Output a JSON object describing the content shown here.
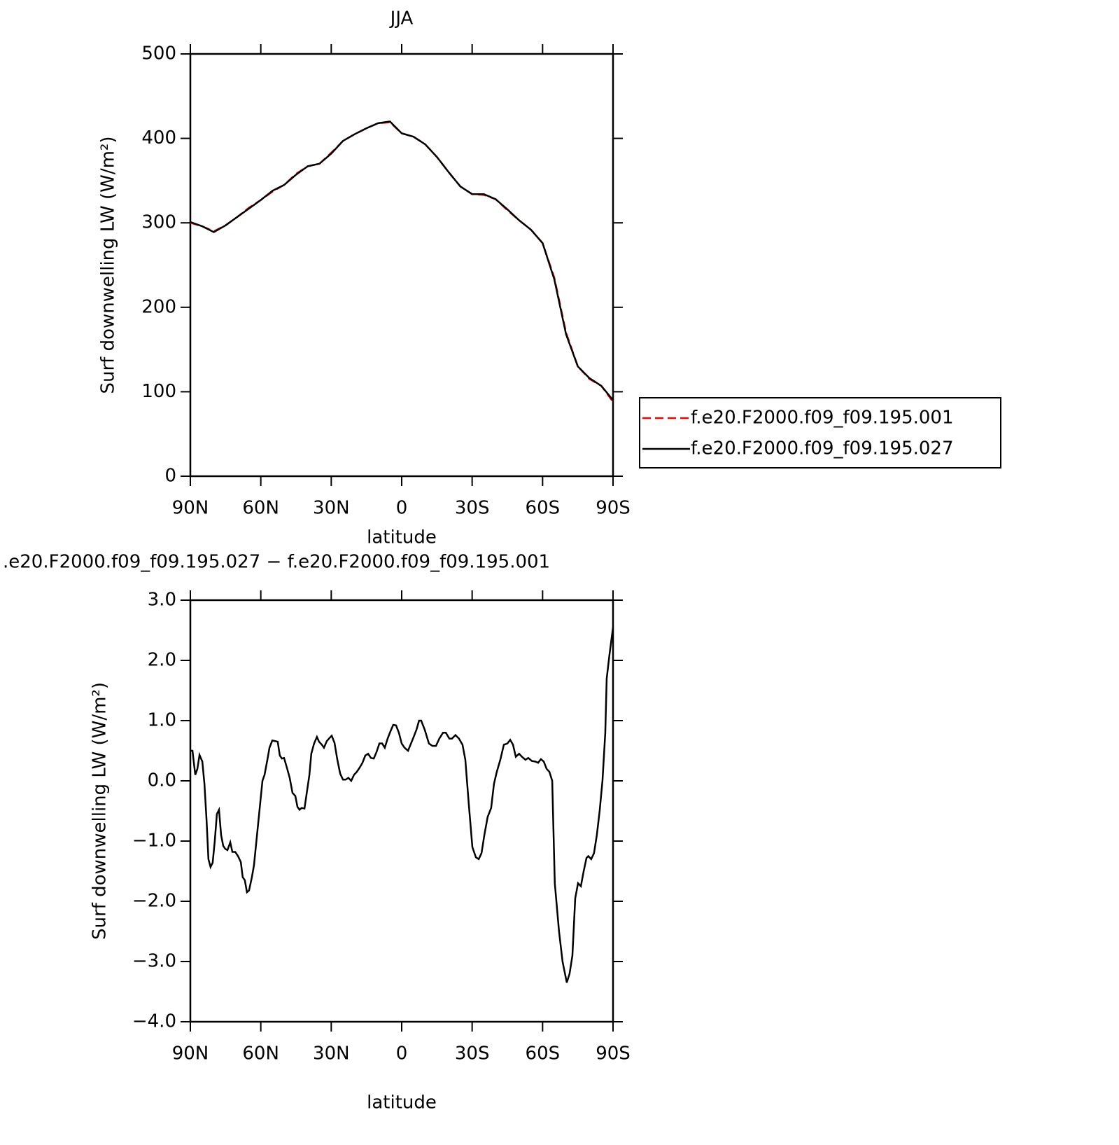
{
  "chart_data": [
    {
      "type": "line",
      "title": "JJA",
      "ylabel": "Surf downwelling LW (W/m²)",
      "xlabel": "latitude",
      "x": [
        90,
        85,
        80,
        75,
        70,
        65,
        60,
        55,
        50,
        45,
        40,
        35,
        30,
        25,
        20,
        15,
        10,
        5,
        0,
        -5,
        -10,
        -15,
        -20,
        -25,
        -30,
        -35,
        -40,
        -45,
        -50,
        -55,
        -60,
        -65,
        -70,
        -75,
        -80,
        -85,
        -90
      ],
      "series": [
        {
          "name": "f.e20.F2000.f09_f09.195.001",
          "color": "#ff0000",
          "line_style": "dashed",
          "values": [
            300,
            296,
            290,
            297,
            307,
            318,
            327,
            337,
            345,
            358,
            367,
            370,
            383,
            397,
            405,
            412,
            418,
            419,
            406,
            402,
            393,
            378,
            360,
            343,
            334,
            333,
            328,
            315,
            303,
            292,
            276,
            235,
            170,
            130,
            115,
            107,
            88
          ]
        },
        {
          "name": "f.e20.F2000.f09_f09.195.027",
          "color": "#000000",
          "line_style": "solid",
          "values": [
            301,
            296,
            289,
            297,
            307,
            317,
            327,
            338,
            345,
            357,
            367,
            370,
            382,
            397,
            405,
            412,
            418,
            420,
            406,
            402,
            393,
            378,
            360,
            343,
            334,
            334,
            328,
            316,
            303,
            292,
            276,
            233,
            168,
            130,
            116,
            107,
            90
          ]
        }
      ],
      "xlim": [
        90,
        -90
      ],
      "xticks": [
        {
          "value": 90,
          "label": "90N"
        },
        {
          "value": 60,
          "label": "60N"
        },
        {
          "value": 30,
          "label": "30N"
        },
        0,
        {
          "value": -30,
          "label": "30S"
        },
        {
          "value": -60,
          "label": "60S"
        },
        {
          "value": -90,
          "label": "90S"
        }
      ],
      "ylim": [
        0,
        500
      ],
      "yticks": [
        0,
        100,
        200,
        300,
        400,
        500
      ],
      "grid": false,
      "legend": "outside right"
    },
    {
      "type": "line",
      "title": ".e20.F2000.f09_f09.195.027 − f.e20.F2000.f09_f09.195.001",
      "ylabel": "Surf downwelling LW (W/m²)",
      "xlabel": "latitude",
      "x": [
        90,
        89.1,
        87.9,
        87,
        86.1,
        84.9,
        84,
        83.1,
        82.3,
        81.4,
        80.5,
        79.6,
        78.7,
        77.8,
        76.9,
        76,
        75.1,
        74.2,
        73,
        72.1,
        70.9,
        69.7,
        68.5,
        67.7,
        66.8,
        65.9,
        65,
        63.8,
        62.9,
        62,
        61.1,
        60.2,
        59.3,
        58.4,
        57.2,
        56.3,
        55.1,
        53.9,
        52.8,
        51.9,
        51,
        50.1,
        48.9,
        47.7,
        46.5,
        45.3,
        44.4,
        43.5,
        42.6,
        41.4,
        40.5,
        39.3,
        38.5,
        37.3,
        36.1,
        35.2,
        34,
        33.1,
        31.9,
        31,
        29.8,
        28.6,
        27.4,
        26.2,
        25,
        23.9,
        22.7,
        21.5,
        20.3,
        19.1,
        17.9,
        16.7,
        15.5,
        14.3,
        13.1,
        11.9,
        10.7,
        9.5,
        8.3,
        7.2,
        6,
        4.8,
        3.6,
        2.4,
        1.2,
        0,
        -1.2,
        -2.7,
        -4.8,
        -6.3,
        -7.4,
        -8.3,
        -9.8,
        -11.6,
        -13.1,
        -14.6,
        -16,
        -17.6,
        -18.8,
        -20.3,
        -21.4,
        -22.9,
        -24.4,
        -25.9,
        -27.1,
        -28.6,
        -30.1,
        -31.6,
        -32.8,
        -34,
        -35.2,
        -36.6,
        -38.1,
        -39.3,
        -40.5,
        -42,
        -43.5,
        -45,
        -46.2,
        -47.4,
        -48.6,
        -50,
        -51.2,
        -52.7,
        -53.9,
        -55.4,
        -56.9,
        -58.1,
        -59.3,
        -60.5,
        -61.7,
        -62.9,
        -64.1,
        -65.2,
        -67,
        -68.5,
        -70.3,
        -71.5,
        -72.7,
        -73.9,
        -75.1,
        -76.3,
        -77.5,
        -78.7,
        -79.5,
        -80.7,
        -81.9,
        -83.1,
        -84.3,
        -85.5,
        -86.7,
        -87.3,
        -88.5,
        -90
      ],
      "values": [
        0.5,
        0.5,
        0.1,
        0.2,
        0.43,
        0.32,
        -0.05,
        -0.65,
        -1.3,
        -1.43,
        -1.36,
        -1.0,
        -0.55,
        -0.48,
        -0.9,
        -1.08,
        -1.13,
        -1.15,
        -1.02,
        -1.18,
        -1.18,
        -1.25,
        -1.35,
        -1.6,
        -1.65,
        -1.85,
        -1.82,
        -1.6,
        -1.4,
        -1.05,
        -0.7,
        -0.35,
        0.0,
        0.1,
        0.35,
        0.55,
        0.67,
        0.66,
        0.65,
        0.42,
        0.37,
        0.38,
        0.22,
        0.05,
        -0.2,
        -0.25,
        -0.43,
        -0.48,
        -0.45,
        -0.46,
        -0.22,
        0.1,
        0.45,
        0.62,
        0.73,
        0.65,
        0.6,
        0.55,
        0.66,
        0.7,
        0.75,
        0.63,
        0.35,
        0.12,
        0.02,
        0.02,
        0.05,
        0.0,
        0.1,
        0.15,
        0.22,
        0.3,
        0.42,
        0.45,
        0.38,
        0.37,
        0.48,
        0.62,
        0.62,
        0.55,
        0.7,
        0.82,
        0.93,
        0.92,
        0.8,
        0.62,
        0.55,
        0.5,
        0.7,
        0.85,
        1.0,
        1.0,
        0.85,
        0.62,
        0.58,
        0.58,
        0.7,
        0.8,
        0.8,
        0.7,
        0.7,
        0.76,
        0.7,
        0.6,
        0.35,
        -0.4,
        -1.1,
        -1.27,
        -1.3,
        -1.2,
        -0.9,
        -0.6,
        -0.45,
        -0.05,
        0.15,
        0.35,
        0.6,
        0.62,
        0.68,
        0.6,
        0.4,
        0.45,
        0.4,
        0.35,
        0.38,
        0.33,
        0.32,
        0.3,
        0.36,
        0.32,
        0.2,
        0.15,
        0.0,
        -1.7,
        -2.5,
        -3.0,
        -3.35,
        -3.2,
        -2.9,
        -1.95,
        -1.7,
        -1.75,
        -1.5,
        -1.28,
        -1.25,
        -1.3,
        -1.2,
        -0.9,
        -0.5,
        0.0,
        0.8,
        1.7,
        2.1,
        2.55
      ],
      "color": "#000000",
      "xlim": [
        90,
        -90
      ],
      "xticks": [
        {
          "value": 90,
          "label": "90N"
        },
        {
          "value": 60,
          "label": "60N"
        },
        {
          "value": 30,
          "label": "30N"
        },
        0,
        {
          "value": -30,
          "label": "30S"
        },
        {
          "value": -60,
          "label": "60S"
        },
        {
          "value": -90,
          "label": "90S"
        }
      ],
      "ylim": [
        -4,
        3
      ],
      "yticks": [
        {
          "value": -4,
          "label": "−4.0"
        },
        {
          "value": -3,
          "label": "−3.0"
        },
        {
          "value": -2,
          "label": "−2.0"
        },
        {
          "value": -1,
          "label": "−1.0"
        },
        {
          "value": 0,
          "label": "0.0"
        },
        {
          "value": 1,
          "label": "1.0"
        },
        {
          "value": 2,
          "label": "2.0"
        },
        {
          "value": 3,
          "label": "3.0"
        }
      ],
      "grid": false
    }
  ]
}
